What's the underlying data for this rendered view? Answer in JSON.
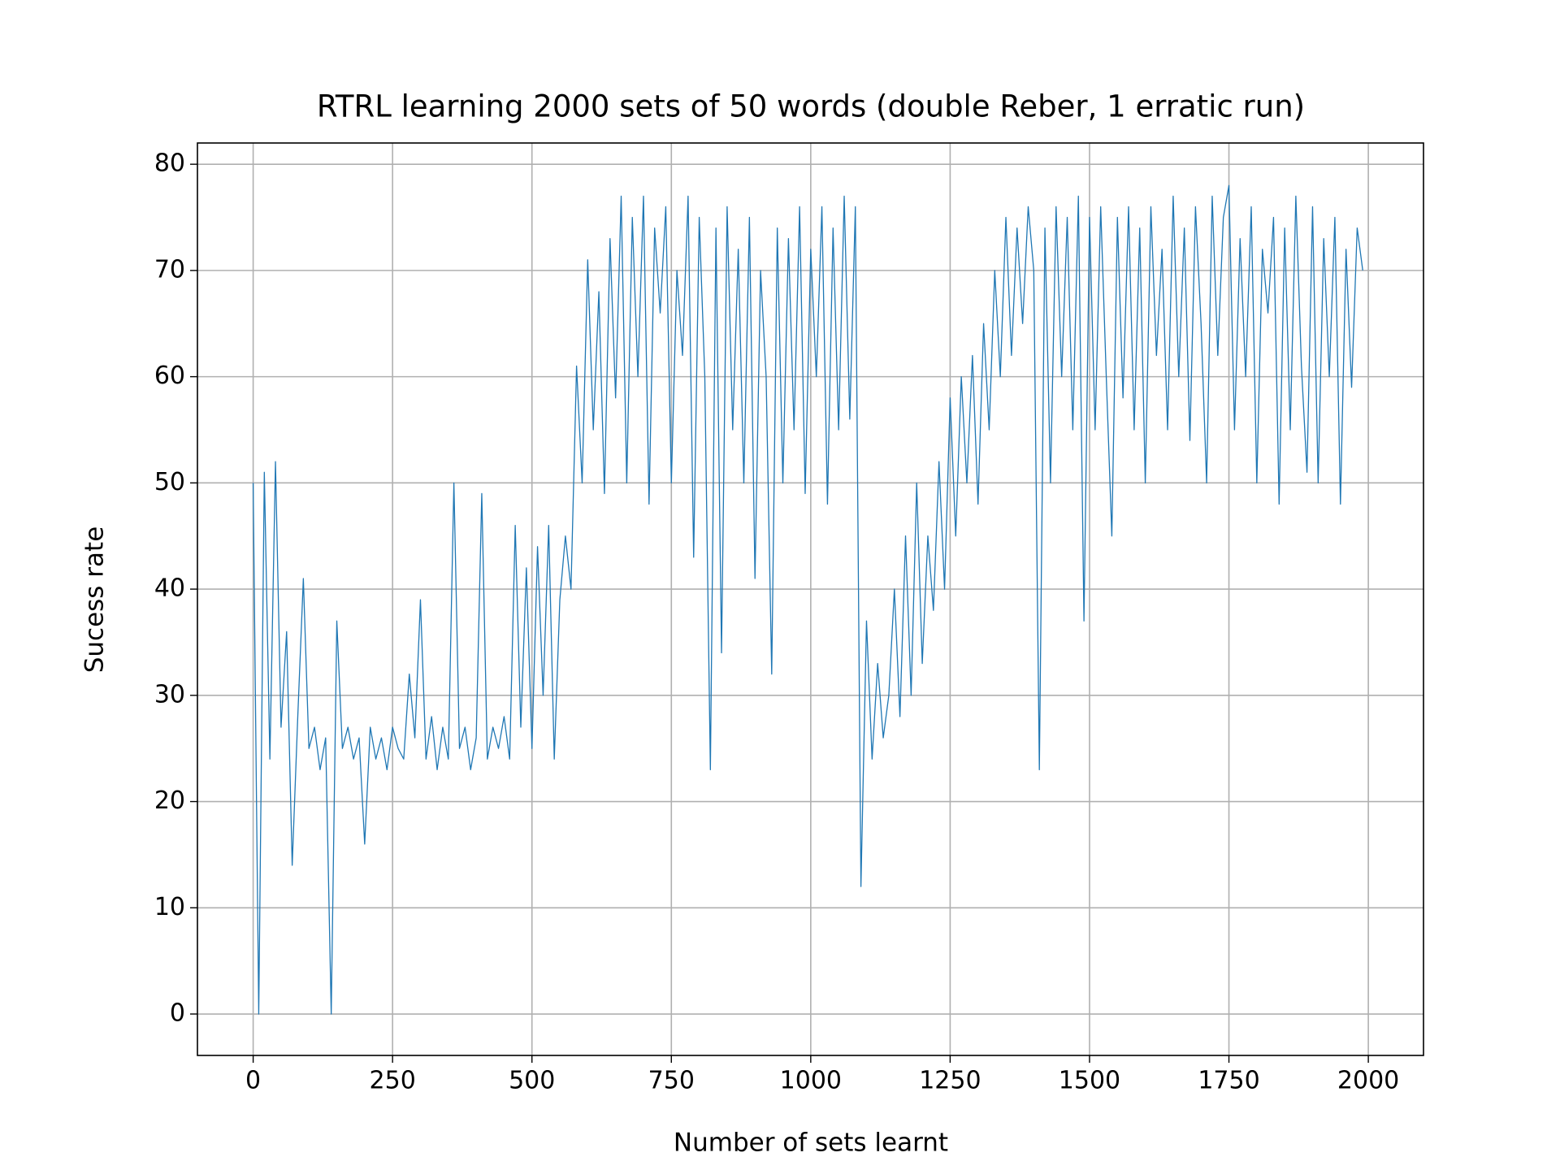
{
  "chart_data": {
    "type": "line",
    "title": "RTRL learning 2000 sets of 50 words (double Reber, 1 erratic run)",
    "xlabel": "Number of sets learnt",
    "ylabel": "Sucess rate",
    "x": [
      0,
      10,
      20,
      30,
      40,
      50,
      60,
      70,
      80,
      90,
      100,
      110,
      120,
      130,
      140,
      150,
      160,
      170,
      180,
      190,
      200,
      210,
      220,
      230,
      240,
      250,
      260,
      270,
      280,
      290,
      300,
      310,
      320,
      330,
      340,
      350,
      360,
      370,
      380,
      390,
      400,
      410,
      420,
      430,
      440,
      450,
      460,
      470,
      480,
      490,
      500,
      510,
      520,
      530,
      540,
      550,
      560,
      570,
      580,
      590,
      600,
      610,
      620,
      630,
      640,
      650,
      660,
      670,
      680,
      690,
      700,
      710,
      720,
      730,
      740,
      750,
      760,
      770,
      780,
      790,
      800,
      810,
      820,
      830,
      840,
      850,
      860,
      870,
      880,
      890,
      900,
      910,
      920,
      930,
      940,
      950,
      960,
      970,
      980,
      990,
      1000,
      1010,
      1020,
      1030,
      1040,
      1050,
      1060,
      1070,
      1080,
      1090,
      1100,
      1110,
      1120,
      1130,
      1140,
      1150,
      1160,
      1170,
      1180,
      1190,
      1200,
      1210,
      1220,
      1230,
      1240,
      1250,
      1260,
      1270,
      1280,
      1290,
      1300,
      1310,
      1320,
      1330,
      1340,
      1350,
      1360,
      1370,
      1380,
      1390,
      1400,
      1410,
      1420,
      1430,
      1440,
      1450,
      1460,
      1470,
      1480,
      1490,
      1500,
      1510,
      1520,
      1530,
      1540,
      1550,
      1560,
      1570,
      1580,
      1590,
      1600,
      1610,
      1620,
      1630,
      1640,
      1650,
      1660,
      1670,
      1680,
      1690,
      1700,
      1710,
      1720,
      1730,
      1740,
      1750,
      1760,
      1770,
      1780,
      1790,
      1800,
      1810,
      1820,
      1830,
      1840,
      1850,
      1860,
      1870,
      1880,
      1890,
      1900,
      1910,
      1920,
      1930,
      1940,
      1950,
      1960,
      1970,
      1980,
      1990
    ],
    "series": [
      {
        "name": "Sucess rate",
        "color": "#1f77b4",
        "values": [
          50,
          0,
          51,
          24,
          52,
          27,
          36,
          14,
          28,
          41,
          25,
          27,
          23,
          26,
          0,
          37,
          25,
          27,
          24,
          26,
          16,
          27,
          24,
          26,
          23,
          27,
          25,
          24,
          32,
          26,
          39,
          24,
          28,
          23,
          27,
          24,
          50,
          25,
          27,
          23,
          26,
          49,
          24,
          27,
          25,
          28,
          24,
          46,
          27,
          42,
          25,
          44,
          30,
          46,
          24,
          39,
          45,
          40,
          61,
          50,
          71,
          55,
          68,
          49,
          73,
          58,
          77,
          50,
          75,
          60,
          77,
          48,
          74,
          66,
          76,
          50,
          70,
          62,
          77,
          43,
          75,
          60,
          23,
          74,
          34,
          76,
          55,
          72,
          50,
          75,
          41,
          70,
          60,
          32,
          74,
          50,
          73,
          55,
          76,
          49,
          72,
          60,
          76,
          48,
          74,
          55,
          77,
          56,
          76,
          12,
          37,
          24,
          33,
          26,
          30,
          40,
          28,
          45,
          30,
          50,
          33,
          45,
          38,
          52,
          40,
          58,
          45,
          60,
          50,
          62,
          48,
          65,
          55,
          70,
          60,
          75,
          62,
          74,
          65,
          76,
          70,
          23,
          74,
          50,
          76,
          60,
          75,
          55,
          77,
          37,
          75,
          55,
          76,
          60,
          45,
          75,
          58,
          76,
          55,
          74,
          50,
          76,
          62,
          72,
          55,
          77,
          60,
          74,
          54,
          76,
          65,
          50,
          77,
          62,
          75,
          78,
          55,
          73,
          60,
          76,
          50,
          72,
          66,
          75,
          48,
          74,
          55,
          77,
          61,
          51,
          76,
          50,
          73,
          60,
          75,
          48,
          72,
          59,
          74,
          70
        ]
      }
    ],
    "xlim": [
      -99.95,
      2098.95
    ],
    "ylim": [
      -3.9,
      82.0
    ],
    "xticks": [
      0,
      250,
      500,
      750,
      1000,
      1250,
      1500,
      1750,
      2000
    ],
    "yticks": [
      0,
      10,
      20,
      30,
      40,
      50,
      60,
      70,
      80
    ],
    "grid": true
  }
}
